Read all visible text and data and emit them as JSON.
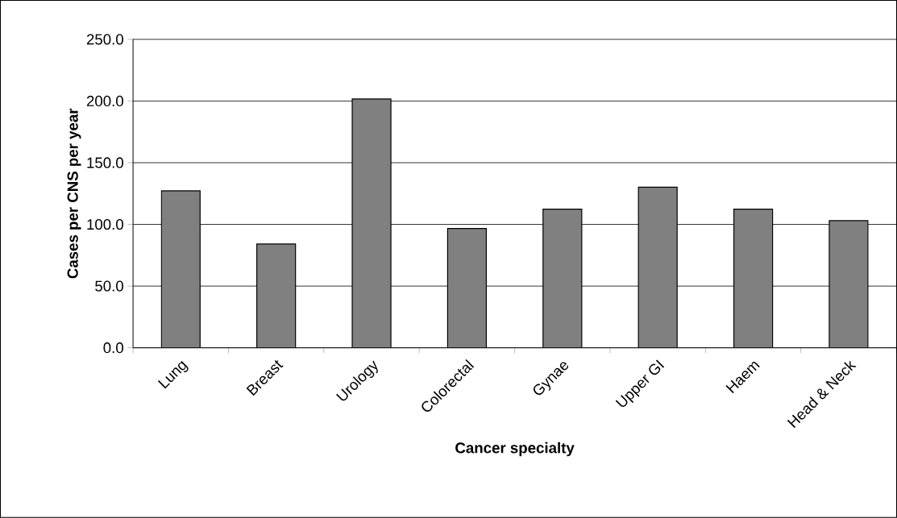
{
  "chart_data": {
    "type": "bar",
    "xlabel": "Cancer specialty",
    "ylabel": "Cases per CNS per year",
    "categories": [
      "Lung",
      "Breast",
      "Urology",
      "Colorectal",
      "Gynae",
      "Upper GI",
      "Haem",
      "Head & Neck"
    ],
    "values": [
      127.2,
      84.1,
      201.7,
      96.7,
      112.4,
      130.2,
      112.4,
      103.0
    ],
    "color": "#808080",
    "ylim": [
      0,
      250
    ],
    "yticks": [
      {
        "value": 0,
        "label": "0.0"
      },
      {
        "value": 50,
        "label": "50.0"
      },
      {
        "value": 100,
        "label": "100.0"
      },
      {
        "value": 150,
        "label": "150.0"
      },
      {
        "value": 200,
        "label": "200.0"
      },
      {
        "value": 250,
        "label": "250.0"
      }
    ],
    "grid": "y"
  }
}
